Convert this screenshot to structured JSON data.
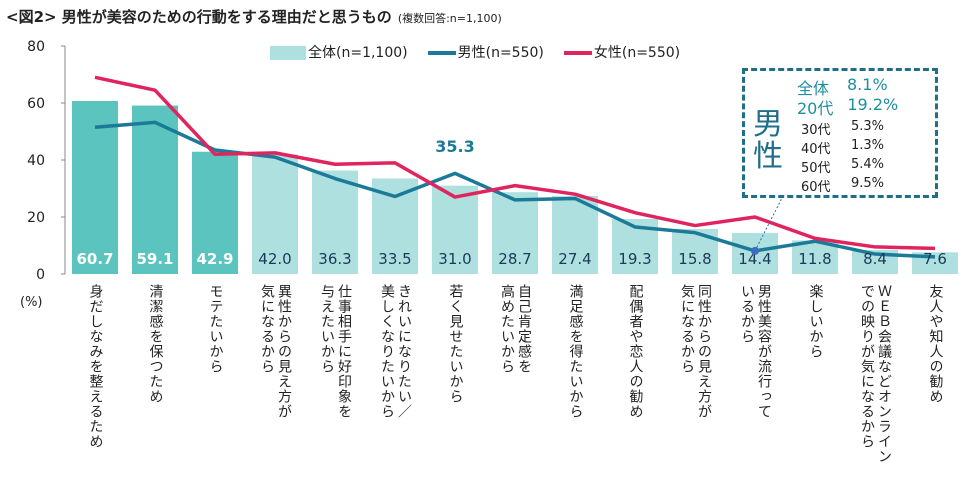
{
  "title": "<図2> 男性が美容のための行動をする理由だと思うもの",
  "subtitle": "(複数回答:n=1,100)",
  "chart_data": {
    "type": "bar",
    "ylabel": "(%)",
    "ylim": [
      0,
      80
    ],
    "yticks": [
      0,
      20,
      40,
      60,
      80
    ],
    "grid": false,
    "legend": "top",
    "categories": [
      "身だしなみを整えるため",
      "清潔感を保つため",
      "モテたいから",
      "異性からの見え方が\n気になるから",
      "仕事相手に好印象を\n与えたいから",
      "きれいになりたい／\n美しくなりたいから",
      "若く見せたいから",
      "自己肯定感を\n高めたいから",
      "満足感を得たいから",
      "配偶者や恋人の勧め",
      "同性からの見え方が\n気になるから",
      "男性美容が流行って\nいるから",
      "楽しいから",
      "ＷＥＢ会議などオンライン\nでの映りが気になるから",
      "友人や知人の勧め"
    ],
    "series": [
      {
        "name": "全体(n=1,100)",
        "type": "bar",
        "values": [
          60.7,
          59.1,
          42.9,
          42.0,
          36.3,
          33.5,
          31.0,
          28.7,
          27.4,
          19.3,
          15.8,
          14.4,
          11.8,
          8.4,
          7.6
        ],
        "value_labels": [
          "60.7",
          "59.1",
          "42.9",
          "42.0",
          "36.3",
          "33.5",
          "31.0",
          "28.7",
          "27.4",
          "19.3",
          "15.8",
          "14.4",
          "11.8",
          "8.4",
          "7.6"
        ]
      },
      {
        "name": "男性(n=550)",
        "type": "line",
        "values": [
          51.5,
          53.2,
          43.5,
          41.0,
          33.5,
          27.2,
          35.3,
          26.0,
          26.5,
          16.5,
          14.5,
          8.1,
          11.5,
          7.0,
          6.0
        ]
      },
      {
        "name": "女性(n=550)",
        "type": "line",
        "values": [
          69.0,
          64.5,
          42.0,
          42.5,
          38.5,
          39.0,
          27.0,
          31.0,
          28.0,
          21.5,
          17.0,
          20.0,
          12.5,
          9.5,
          9.0
        ]
      }
    ],
    "annotations": {
      "male_highlight": "35.3"
    },
    "colors": {
      "bar_top3": "#5bc4be",
      "bar": "#aee0df",
      "male": "#1c7a99",
      "female": "#e0245e"
    }
  },
  "callout": {
    "label": "男性",
    "rows": [
      [
        "全体",
        "8.1%"
      ],
      [
        "20代",
        "19.2%"
      ],
      [
        "30代",
        "5.3%"
      ],
      [
        "40代",
        "1.3%"
      ],
      [
        "50代",
        "5.4%"
      ],
      [
        "60代",
        "9.5%"
      ]
    ]
  }
}
